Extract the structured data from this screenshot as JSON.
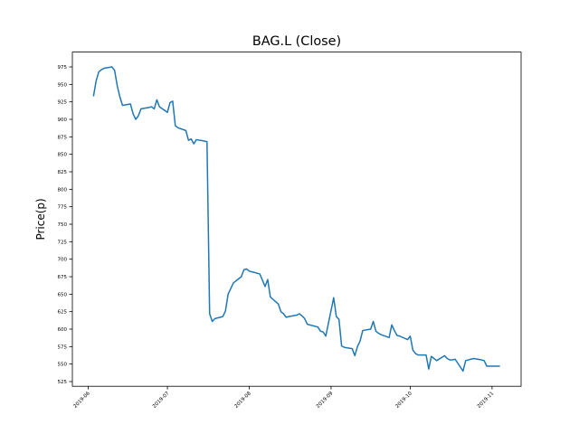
{
  "chart_data": {
    "type": "line",
    "title": "BAG.L (Close)",
    "ylabel": "Price(p)",
    "series": [
      {
        "name": "Close",
        "color": "#1f77b4",
        "x": [
          "2019-06-03",
          "2019-06-04",
          "2019-06-05",
          "2019-06-06",
          "2019-06-07",
          "2019-06-10",
          "2019-06-11",
          "2019-06-12",
          "2019-06-13",
          "2019-06-14",
          "2019-06-17",
          "2019-06-18",
          "2019-06-19",
          "2019-06-20",
          "2019-06-21",
          "2019-06-24",
          "2019-06-25",
          "2019-06-26",
          "2019-06-27",
          "2019-06-28",
          "2019-07-01",
          "2019-07-02",
          "2019-07-03",
          "2019-07-04",
          "2019-07-05",
          "2019-07-08",
          "2019-07-09",
          "2019-07-10",
          "2019-07-11",
          "2019-07-12",
          "2019-07-15",
          "2019-07-16",
          "2019-07-17",
          "2019-07-18",
          "2019-07-19",
          "2019-07-22",
          "2019-07-23",
          "2019-07-24",
          "2019-07-25",
          "2019-07-26",
          "2019-07-29",
          "2019-07-30",
          "2019-07-31",
          "2019-08-01",
          "2019-08-02",
          "2019-08-05",
          "2019-08-06",
          "2019-08-07",
          "2019-08-08",
          "2019-08-09",
          "2019-08-12",
          "2019-08-13",
          "2019-08-14",
          "2019-08-15",
          "2019-08-16",
          "2019-08-19",
          "2019-08-20",
          "2019-08-21",
          "2019-08-22",
          "2019-08-23",
          "2019-08-27",
          "2019-08-28",
          "2019-08-29",
          "2019-08-30",
          "2019-09-02",
          "2019-09-03",
          "2019-09-04",
          "2019-09-05",
          "2019-09-06",
          "2019-09-09",
          "2019-09-10",
          "2019-09-11",
          "2019-09-12",
          "2019-09-13",
          "2019-09-16",
          "2019-09-17",
          "2019-09-18",
          "2019-09-19",
          "2019-09-20",
          "2019-09-23",
          "2019-09-24",
          "2019-09-25",
          "2019-09-26",
          "2019-09-27",
          "2019-09-30",
          "2019-10-01",
          "2019-10-02",
          "2019-10-03",
          "2019-10-04",
          "2019-10-07",
          "2019-10-08",
          "2019-10-09",
          "2019-10-10",
          "2019-10-11",
          "2019-10-14",
          "2019-10-15",
          "2019-10-16",
          "2019-10-17",
          "2019-10-18",
          "2019-10-21",
          "2019-10-22",
          "2019-10-23",
          "2019-10-24",
          "2019-10-25",
          "2019-10-28",
          "2019-10-29",
          "2019-10-30",
          "2019-10-31",
          "2019-11-01",
          "2019-11-04"
        ],
        "values": [
          933,
          955,
          968,
          971,
          973,
          975,
          970,
          948,
          932,
          920,
          922,
          908,
          900,
          905,
          915,
          917,
          918,
          915,
          928,
          918,
          910,
          924,
          926,
          891,
          888,
          884,
          870,
          872,
          865,
          871,
          869,
          868,
          622,
          611,
          615,
          618,
          626,
          650,
          658,
          666,
          675,
          685,
          686,
          683,
          682,
          679,
          670,
          661,
          671,
          646,
          636,
          625,
          622,
          617,
          618,
          620,
          622,
          619,
          615,
          607,
          603,
          597,
          596,
          590,
          645,
          618,
          614,
          576,
          574,
          572,
          562,
          575,
          583,
          598,
          600,
          611,
          597,
          594,
          592,
          588,
          606,
          598,
          591,
          590,
          585,
          590,
          570,
          565,
          563,
          563,
          543,
          561,
          558,
          555,
          562,
          558,
          556,
          556,
          557,
          540,
          555,
          556,
          557,
          558,
          556,
          555,
          547,
          547,
          547,
          547
        ]
      }
    ],
    "xlim": [
      "2019-05-26",
      "2019-11-12"
    ],
    "xticks": [
      {
        "value": "2019-06-01",
        "label": "2019-06"
      },
      {
        "value": "2019-07-01",
        "label": "2019-07"
      },
      {
        "value": "2019-08-01",
        "label": "2019-08"
      },
      {
        "value": "2019-09-01",
        "label": "2019-09"
      },
      {
        "value": "2019-10-01",
        "label": "2019-10"
      },
      {
        "value": "2019-11-01",
        "label": "2019-11"
      }
    ],
    "ylim": [
      518.3,
      996.2
    ],
    "yticks": [
      525,
      550,
      575,
      600,
      625,
      650,
      675,
      700,
      725,
      750,
      775,
      800,
      825,
      850,
      875,
      900,
      925,
      950,
      975
    ]
  }
}
